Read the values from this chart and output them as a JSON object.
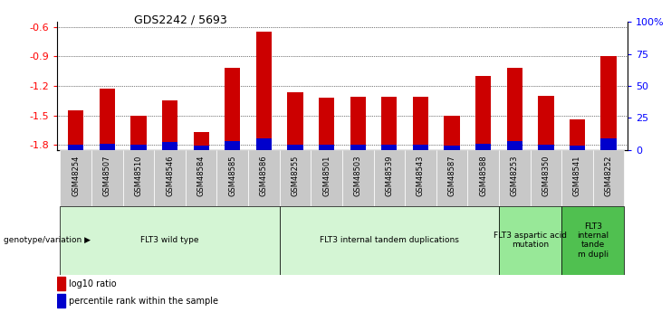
{
  "title": "GDS2242 / 5693",
  "samples": [
    "GSM48254",
    "GSM48507",
    "GSM48510",
    "GSM48546",
    "GSM48584",
    "GSM48585",
    "GSM48586",
    "GSM48255",
    "GSM48501",
    "GSM48503",
    "GSM48539",
    "GSM48543",
    "GSM48587",
    "GSM48588",
    "GSM48253",
    "GSM48350",
    "GSM48541",
    "GSM48252"
  ],
  "log10_ratio": [
    -1.45,
    -1.23,
    -1.5,
    -1.35,
    -1.67,
    -1.02,
    -0.65,
    -1.27,
    -1.32,
    -1.31,
    -1.31,
    -1.31,
    -1.5,
    -1.1,
    -1.02,
    -1.3,
    -1.54,
    -0.9
  ],
  "percentile_rank": [
    4,
    5,
    4,
    6,
    3,
    7,
    9,
    4,
    4,
    4,
    4,
    4,
    3,
    5,
    7,
    4,
    3,
    9
  ],
  "groups": [
    {
      "label": "FLT3 wild type",
      "start": 0,
      "end": 7,
      "color": "#d4f5d4"
    },
    {
      "label": "FLT3 internal tandem duplications",
      "start": 7,
      "end": 14,
      "color": "#d4f5d4"
    },
    {
      "label": "FLT3 aspartic acid\nmutation",
      "start": 14,
      "end": 16,
      "color": "#98e898"
    },
    {
      "label": "FLT3\ninternal\ntande\nm dupli",
      "start": 16,
      "end": 18,
      "color": "#50c050"
    }
  ],
  "ylim_left": [
    -1.85,
    -0.55
  ],
  "yticks_left": [
    -1.8,
    -1.5,
    -1.2,
    -0.9,
    -0.6
  ],
  "yticks_right": [
    0,
    25,
    50,
    75,
    100
  ],
  "bar_color_red": "#cc0000",
  "bar_color_blue": "#0000cc",
  "tick_bg_color": "#c8c8c8",
  "legend_red": "log10 ratio",
  "legend_blue": "percentile rank within the sample",
  "genotype_label": "genotype/variation"
}
